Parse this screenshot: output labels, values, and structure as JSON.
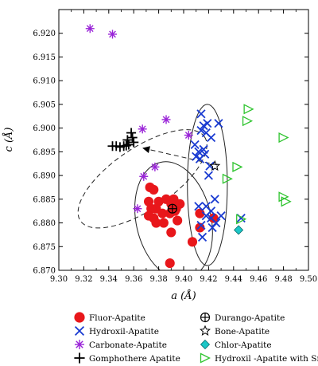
{
  "chart_data": {
    "type": "scatter",
    "xlabel": "a (Å)",
    "ylabel": "c (Å)",
    "xlim": [
      9.3,
      9.5
    ],
    "ylim": [
      6.87,
      6.925
    ],
    "xticks": [
      "9.30",
      "9.32",
      "9.34",
      "9.36",
      "9.38",
      "9.40",
      "9.42",
      "9.44",
      "9.46",
      "9.48",
      "9.50"
    ],
    "yticks": [
      "6.870",
      "6.875",
      "6.880",
      "6.885",
      "6.890",
      "6.895",
      "6.900",
      "6.905",
      "6.910",
      "6.915",
      "6.920"
    ],
    "grid": false,
    "legend_position": "bottom",
    "series": [
      {
        "name": "Fluor-Apatite",
        "marker": "filled-circle",
        "color": "#e8171b",
        "points": [
          [
            9.373,
            6.8875
          ],
          [
            9.376,
            6.887
          ],
          [
            9.372,
            6.8845
          ],
          [
            9.38,
            6.8845
          ],
          [
            9.386,
            6.885
          ],
          [
            9.392,
            6.885
          ],
          [
            9.378,
            6.883
          ],
          [
            9.383,
            6.882
          ],
          [
            9.374,
            6.883
          ],
          [
            9.376,
            6.881
          ],
          [
            9.372,
            6.8815
          ],
          [
            9.378,
            6.88
          ],
          [
            9.389,
            6.882
          ],
          [
            9.39,
            6.884
          ],
          [
            9.394,
            6.883
          ],
          [
            9.397,
            6.884
          ],
          [
            9.393,
            6.8825
          ],
          [
            9.395,
            6.8805
          ],
          [
            9.384,
            6.88
          ],
          [
            9.39,
            6.878
          ],
          [
            9.407,
            6.876
          ],
          [
            9.413,
            6.879
          ],
          [
            9.413,
            6.882
          ],
          [
            9.424,
            6.881
          ],
          [
            9.389,
            6.8715
          ]
        ]
      },
      {
        "name": "Hydroxil-Apatite",
        "marker": "x",
        "color": "#1a3bd1",
        "points": [
          [
            9.414,
            6.903
          ],
          [
            9.416,
            6.9005
          ],
          [
            9.419,
            6.901
          ],
          [
            9.414,
            6.8995
          ],
          [
            9.418,
            6.899
          ],
          [
            9.428,
            6.901
          ],
          [
            9.422,
            6.898
          ],
          [
            9.409,
            6.8965
          ],
          [
            9.412,
            6.895
          ],
          [
            9.416,
            6.8955
          ],
          [
            9.413,
            6.8935
          ],
          [
            9.417,
            6.8945
          ],
          [
            9.41,
            6.894
          ],
          [
            9.421,
            6.892
          ],
          [
            9.42,
            6.89
          ],
          [
            9.412,
            6.8835
          ],
          [
            9.418,
            6.8835
          ],
          [
            9.425,
            6.885
          ],
          [
            9.422,
            6.8825
          ],
          [
            9.418,
            6.8815
          ],
          [
            9.422,
            6.881
          ],
          [
            9.426,
            6.88
          ],
          [
            9.414,
            6.8795
          ],
          [
            9.423,
            6.879
          ],
          [
            9.415,
            6.877
          ],
          [
            9.43,
            6.8815
          ],
          [
            9.446,
            6.881
          ]
        ]
      },
      {
        "name": "Carbonate-Apatite",
        "marker": "asterisk",
        "color": "#9a24d8",
        "points": [
          [
            9.325,
            6.921
          ],
          [
            9.343,
            6.9198
          ],
          [
            9.367,
            6.8998
          ],
          [
            9.386,
            6.9018
          ],
          [
            9.404,
            6.8985
          ],
          [
            9.377,
            6.8918
          ],
          [
            9.368,
            6.8898
          ],
          [
            9.363,
            6.883
          ]
        ]
      },
      {
        "name": "Gomphothere Apatite",
        "marker": "plus",
        "color": "#000000",
        "points": [
          [
            9.358,
            6.899
          ],
          [
            9.359,
            6.898
          ],
          [
            9.355,
            6.8975
          ],
          [
            9.36,
            6.897
          ],
          [
            9.356,
            6.8965
          ],
          [
            9.354,
            6.8963
          ],
          [
            9.352,
            6.8962
          ],
          [
            9.349,
            6.896
          ],
          [
            9.346,
            6.8962
          ],
          [
            9.343,
            6.8962
          ]
        ]
      },
      {
        "name": "Durango-Apatite",
        "marker": "circle-plus",
        "color": "#000000",
        "points": [
          [
            9.391,
            6.883
          ]
        ]
      },
      {
        "name": "Bone-Apatite",
        "marker": "star",
        "color": "#000000",
        "points": [
          [
            9.425,
            6.892
          ]
        ]
      },
      {
        "name": "Chlor-Apatite",
        "marker": "diamond",
        "color": "#1bc7c7",
        "points": [
          [
            9.444,
            6.8785
          ]
        ]
      },
      {
        "name": "Hydroxil -Apatite with Sr",
        "marker": "triangle-right",
        "color": "#2ec42e",
        "points": [
          [
            9.452,
            6.904
          ],
          [
            9.451,
            6.9015
          ],
          [
            9.48,
            6.898
          ],
          [
            9.443,
            6.8918
          ],
          [
            9.435,
            6.8893
          ],
          [
            9.48,
            6.8855
          ],
          [
            9.482,
            6.8845
          ],
          [
            9.446,
            6.8808
          ]
        ]
      }
    ],
    "annotations": {
      "ellipses": [
        {
          "style": "dashed",
          "center": [
            9.367,
            6.8893
          ],
          "rx": 0.06,
          "ry": 0.0065,
          "angle_deg": -34
        },
        {
          "style": "solid",
          "center": [
            9.392,
            6.8805
          ],
          "rx": 0.03,
          "ry": 0.0126,
          "angle_deg": -13
        },
        {
          "style": "solid",
          "center": [
            9.419,
            6.888
          ],
          "rx": 0.016,
          "ry": 0.017,
          "angle_deg": 0
        }
      ],
      "gomphothere_pointer": {
        "from": [
          9.427,
          6.8922
        ],
        "to": [
          9.367,
          6.8958
        ],
        "style": "dashed",
        "arrowhead": "filled-triangle"
      }
    }
  }
}
